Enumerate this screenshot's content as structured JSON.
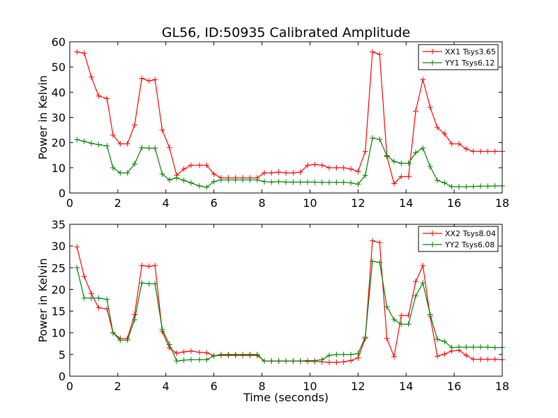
{
  "figure": {
    "title": "GL56, ID:50935 Calibrated Amplitude"
  },
  "chart_data": [
    {
      "type": "line",
      "ylabel": "Power in Kelvin",
      "xlabel": "",
      "xlim": [
        0,
        18
      ],
      "ylim": [
        0,
        60
      ],
      "xticks": [
        0,
        2,
        4,
        6,
        8,
        10,
        12,
        14,
        16,
        18
      ],
      "yticks": [
        0,
        10,
        20,
        30,
        40,
        50,
        60
      ],
      "legend_position": "top-right",
      "x": [
        0.3,
        0.6,
        0.9,
        1.2,
        1.55,
        1.8,
        2.1,
        2.4,
        2.7,
        3.0,
        3.3,
        3.55,
        3.85,
        4.15,
        4.45,
        4.75,
        5.05,
        5.4,
        5.7,
        6.0,
        6.3,
        6.6,
        6.9,
        7.2,
        7.5,
        7.8,
        8.1,
        8.4,
        8.7,
        9.0,
        9.3,
        9.6,
        9.9,
        10.2,
        10.5,
        10.8,
        11.1,
        11.4,
        11.7,
        12.0,
        12.3,
        12.6,
        12.9,
        13.2,
        13.5,
        13.8,
        14.1,
        14.4,
        14.7,
        15.0,
        15.3,
        15.6,
        15.9,
        16.2,
        16.5,
        16.8,
        17.1,
        17.4,
        17.7,
        18.0
      ],
      "series": [
        {
          "name": "XX1 Tsys3.65",
          "color": "#ff0000",
          "values": [
            56,
            55.5,
            46,
            38.5,
            37.5,
            23,
            19.5,
            19.5,
            27,
            45.5,
            44.5,
            45,
            25,
            18,
            7,
            9.5,
            11,
            11,
            11,
            7.5,
            6,
            6,
            6,
            6,
            6,
            6,
            8,
            8,
            8.3,
            8,
            8,
            8.3,
            11,
            11.3,
            11,
            10,
            10,
            10,
            9.5,
            8.5,
            16.5,
            56,
            55,
            14.5,
            3.7,
            6.5,
            6.5,
            32.5,
            45,
            34,
            26,
            23.5,
            19.5,
            19.5,
            17.5,
            16.5,
            16.5,
            16.5,
            16.5,
            16.5
          ]
        },
        {
          "name": "YY1 Tsys6.12",
          "color": "#008000",
          "values": [
            21.2,
            20.5,
            19.7,
            19.2,
            18.7,
            10,
            8,
            8,
            11.5,
            18,
            17.8,
            17.8,
            7.5,
            5.2,
            6,
            5,
            4,
            2.8,
            2.3,
            4.5,
            5.2,
            5.2,
            5.2,
            5.2,
            5.2,
            5.2,
            4.5,
            4.3,
            4.5,
            4.3,
            4.3,
            4.3,
            4.3,
            4.3,
            4.2,
            4.2,
            4.2,
            4.2,
            4,
            3.5,
            7,
            21.8,
            21.3,
            14.8,
            12.5,
            11.8,
            11.8,
            16,
            17.8,
            10.5,
            5,
            4,
            2.5,
            2.5,
            2.5,
            2.6,
            2.7,
            2.7,
            2.8,
            2.8
          ]
        }
      ]
    },
    {
      "type": "line",
      "ylabel": "Power in Kelvin",
      "xlabel": "Time (seconds)",
      "xlim": [
        0,
        18
      ],
      "ylim": [
        0,
        35
      ],
      "xticks": [
        0,
        2,
        4,
        6,
        8,
        10,
        12,
        14,
        16,
        18
      ],
      "yticks": [
        0,
        5,
        10,
        15,
        20,
        25,
        30,
        35
      ],
      "legend_position": "top-right",
      "x": [
        0.3,
        0.6,
        0.9,
        1.2,
        1.55,
        1.8,
        2.1,
        2.4,
        2.7,
        3.0,
        3.3,
        3.55,
        3.85,
        4.15,
        4.45,
        4.75,
        5.05,
        5.4,
        5.7,
        6.0,
        6.3,
        6.6,
        6.9,
        7.2,
        7.5,
        7.8,
        8.1,
        8.4,
        8.7,
        9.0,
        9.3,
        9.6,
        9.9,
        10.2,
        10.5,
        10.8,
        11.1,
        11.4,
        11.7,
        12.0,
        12.3,
        12.6,
        12.9,
        13.2,
        13.5,
        13.8,
        14.1,
        14.4,
        14.7,
        15.0,
        15.3,
        15.6,
        15.9,
        16.2,
        16.5,
        16.8,
        17.1,
        17.4,
        17.7,
        18.0
      ],
      "series": [
        {
          "name": "XX2 Tsys8.04",
          "color": "#ff0000",
          "values": [
            29.8,
            23,
            19,
            15.8,
            15.5,
            10,
            8.7,
            8.7,
            14.2,
            25.5,
            25.3,
            25.5,
            10.3,
            6.5,
            5.3,
            5.6,
            5.8,
            5.5,
            5.4,
            4.7,
            4.8,
            4.8,
            4.8,
            4.8,
            4.8,
            4.8,
            3.5,
            3.5,
            3.5,
            3.5,
            3.5,
            3.5,
            3.4,
            3.4,
            3.3,
            3.2,
            3.2,
            3.3,
            3.6,
            4.2,
            8.7,
            31.2,
            30.8,
            8.7,
            4.5,
            14,
            14,
            21.8,
            25.5,
            13.8,
            4.6,
            5.1,
            5.8,
            6,
            4.8,
            3.9,
            3.9,
            3.9,
            3.9,
            3.8
          ]
        },
        {
          "name": "YY2 Tsys6.08",
          "color": "#008000",
          "values": [
            25,
            18,
            18,
            18,
            17.7,
            10,
            8.3,
            8.3,
            13,
            21.5,
            21.3,
            21.3,
            10.8,
            7.3,
            3.5,
            3.7,
            3.8,
            3.8,
            3.8,
            4.7,
            5,
            5,
            5,
            5,
            5,
            5,
            3.5,
            3.5,
            3.5,
            3.5,
            3.5,
            3.5,
            3.6,
            3.6,
            3.8,
            4.8,
            5,
            5,
            5,
            5.2,
            9,
            26.5,
            26.2,
            16,
            13,
            12,
            12,
            18.5,
            21.5,
            14.2,
            8.5,
            8,
            6.6,
            6.7,
            6.7,
            6.7,
            6.7,
            6.7,
            6.6,
            6.6
          ]
        }
      ]
    }
  ]
}
